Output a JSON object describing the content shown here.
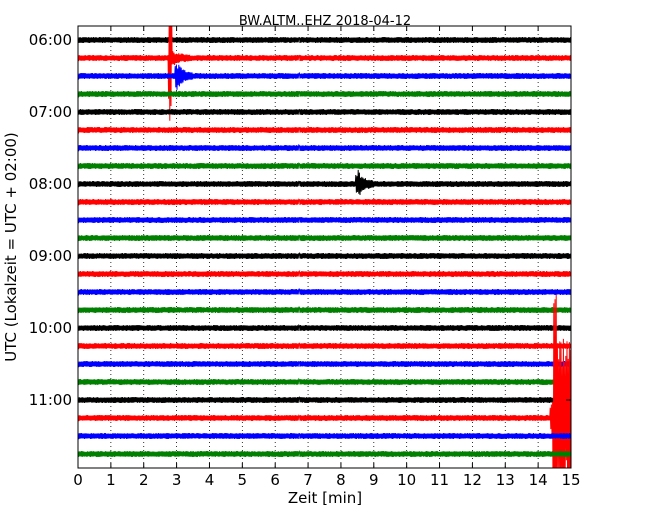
{
  "chart_data": {
    "type": "line",
    "title": "BW.ALTM..EHZ 2018-04-12",
    "xlabel": "Zeit  [min]",
    "ylabel": "UTC (Lokalzeit = UTC + 02:00)",
    "xlim": [
      0,
      15
    ],
    "x_ticks": [
      "0",
      "1",
      "2",
      "3",
      "4",
      "5",
      "6",
      "7",
      "8",
      "9",
      "10",
      "11",
      "12",
      "13",
      "14",
      "15"
    ],
    "y_ticks": [
      "06:00",
      "07:00",
      "08:00",
      "09:00",
      "10:00",
      "11:00"
    ],
    "grid": "vertical dotted",
    "trace_colors": [
      "#000000",
      "#ff0000",
      "#0000ff",
      "#007f00"
    ],
    "rows": [
      {
        "start": "06:00",
        "color": "#000000"
      },
      {
        "start": "06:15",
        "color": "#ff0000",
        "event_min": 2.8,
        "event": "spike"
      },
      {
        "start": "06:30",
        "color": "#0000ff",
        "event_min": 3.0,
        "event": "small"
      },
      {
        "start": "06:45",
        "color": "#007f00"
      },
      {
        "start": "07:00",
        "color": "#000000"
      },
      {
        "start": "07:15",
        "color": "#ff0000"
      },
      {
        "start": "07:30",
        "color": "#0000ff"
      },
      {
        "start": "07:45",
        "color": "#007f00"
      },
      {
        "start": "08:00",
        "color": "#000000",
        "event_min": 8.5,
        "event": "small"
      },
      {
        "start": "08:15",
        "color": "#ff0000"
      },
      {
        "start": "08:30",
        "color": "#0000ff"
      },
      {
        "start": "08:45",
        "color": "#007f00"
      },
      {
        "start": "09:00",
        "color": "#000000"
      },
      {
        "start": "09:15",
        "color": "#ff0000"
      },
      {
        "start": "09:30",
        "color": "#0000ff"
      },
      {
        "start": "09:45",
        "color": "#007f00"
      },
      {
        "start": "10:00",
        "color": "#000000"
      },
      {
        "start": "10:15",
        "color": "#ff0000"
      },
      {
        "start": "10:30",
        "color": "#0000ff"
      },
      {
        "start": "10:45",
        "color": "#007f00"
      },
      {
        "start": "11:00",
        "color": "#000000"
      },
      {
        "start": "11:15",
        "color": "#ff0000",
        "event_min": 14.5,
        "event": "earthquake"
      },
      {
        "start": "11:30",
        "color": "#0000ff"
      },
      {
        "start": "11:45",
        "color": "#007f00"
      }
    ]
  }
}
